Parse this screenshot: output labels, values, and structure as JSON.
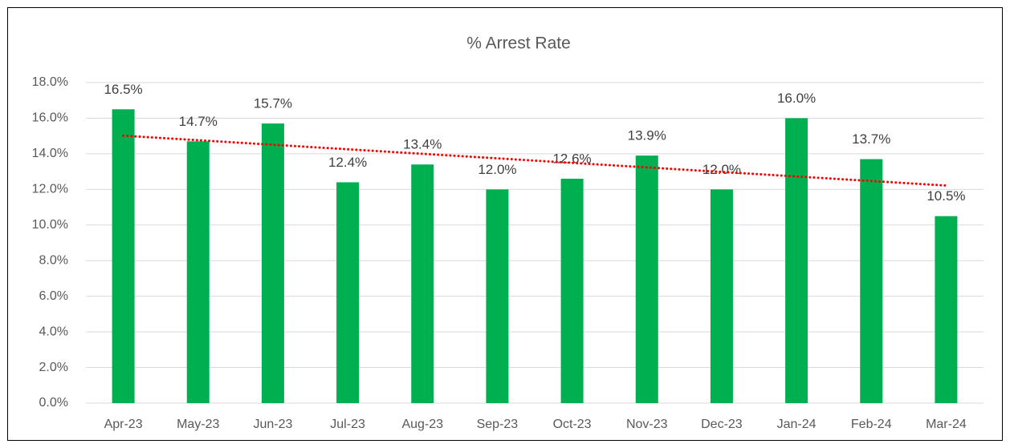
{
  "chart_data": {
    "type": "bar",
    "title": "% Arrest Rate",
    "categories": [
      "Apr-23",
      "May-23",
      "Jun-23",
      "Jul-23",
      "Aug-23",
      "Sep-23",
      "Oct-23",
      "Nov-23",
      "Dec-23",
      "Jan-24",
      "Feb-24",
      "Mar-24"
    ],
    "values": [
      16.5,
      14.7,
      15.7,
      12.4,
      13.4,
      12.0,
      12.6,
      13.9,
      12.0,
      16.0,
      13.7,
      10.5
    ],
    "value_labels": [
      "16.5%",
      "14.7%",
      "15.7%",
      "12.4%",
      "13.4%",
      "12.0%",
      "12.6%",
      "13.9%",
      "12.0%",
      "16.0%",
      "13.7%",
      "10.5%"
    ],
    "color": "#00b050",
    "ylim": [
      0,
      18
    ],
    "yticks": [
      {
        "value": 0,
        "label": "0.0%"
      },
      {
        "value": 2,
        "label": "2.0%"
      },
      {
        "value": 4,
        "label": "4.0%"
      },
      {
        "value": 6,
        "label": "6.0%"
      },
      {
        "value": 8,
        "label": "8.0%"
      },
      {
        "value": 10,
        "label": "10.0%"
      },
      {
        "value": 12,
        "label": "12.0%"
      },
      {
        "value": 14,
        "label": "14.0%"
      },
      {
        "value": 16,
        "label": "16.0%"
      },
      {
        "value": 18,
        "label": "18.0%"
      }
    ],
    "grid": true,
    "trendline": {
      "type": "linear",
      "color": "#ff0000"
    }
  }
}
